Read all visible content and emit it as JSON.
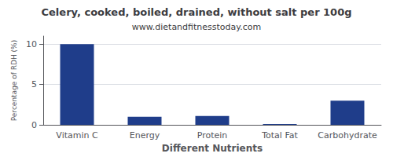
{
  "chart_data": {
    "type": "bar",
    "title": "Celery, cooked, boiled, drained, without salt per 100g",
    "subtitle": "www.dietandfitnesstoday.com",
    "xlabel": "Different Nutrients",
    "ylabel": "Percentage of RDH (%)",
    "categories": [
      "Vitamin C",
      "Energy",
      "Protein",
      "Total Fat",
      "Carbohydrate"
    ],
    "values": [
      10.0,
      1.0,
      1.1,
      0.1,
      3.0
    ],
    "color": "#1f3d8a",
    "ylim": [
      0,
      11
    ],
    "yticks": [
      0,
      5,
      10
    ],
    "grid": true
  }
}
